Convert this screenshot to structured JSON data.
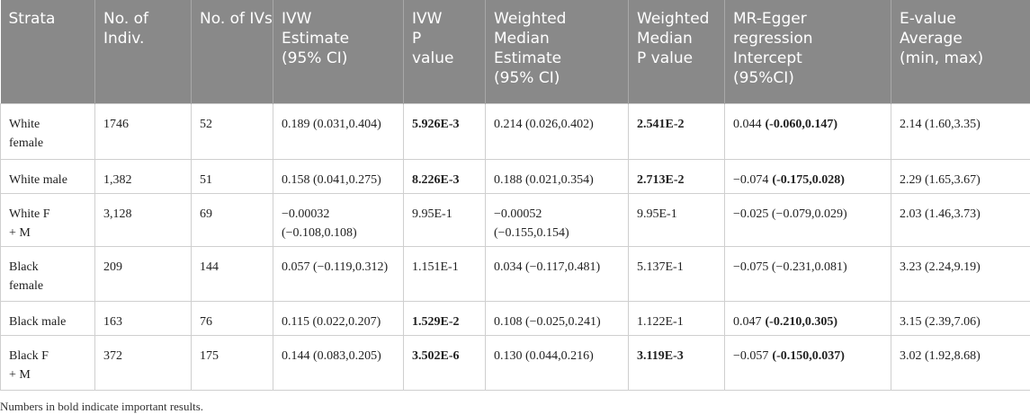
{
  "table": {
    "header": [
      [
        "Strata"
      ],
      [
        "No. of",
        "Indiv."
      ],
      [
        "No. of IVs"
      ],
      [
        "IVW",
        "Estimate",
        "(95% CI)"
      ],
      [
        "IVW",
        "P",
        "value"
      ],
      [
        "Weighted",
        "Median",
        "Estimate",
        "(95% CI)"
      ],
      [
        "Weighted",
        "Median",
        "P value"
      ],
      [
        "MR-Egger",
        "regression",
        "Intercept",
        "(95%CI)"
      ],
      [
        "E-value",
        "Average",
        "(min, max)"
      ]
    ],
    "rows": [
      [
        [
          "White",
          "female"
        ],
        [
          "1746"
        ],
        [
          "52"
        ],
        [
          "0.189 (0.031,0.404)"
        ],
        [
          {
            "bold": "5.926E-3"
          }
        ],
        [
          "0.214 (0.026,0.402)"
        ],
        [
          {
            "bold": "2.541E-2"
          }
        ],
        [
          {
            "plain": "0.044",
            "bold": "(-0.060,0.147)"
          }
        ],
        [
          "2.14 (1.60,3.35)"
        ]
      ],
      [
        [
          "White male"
        ],
        [
          "1,382"
        ],
        [
          "51"
        ],
        [
          "0.158 (0.041,0.275)"
        ],
        [
          {
            "bold": "8.226E-3"
          }
        ],
        [
          "0.188 (0.021,0.354)"
        ],
        [
          {
            "bold": "2.713E-2"
          }
        ],
        [
          {
            "plain": "−0.074",
            "bold": "(-0.175,0.028)"
          }
        ],
        [
          "2.29 (1.65,3.67)"
        ]
      ],
      [
        [
          "White F",
          "+ M"
        ],
        [
          "3,128"
        ],
        [
          "69"
        ],
        [
          "−0.00032",
          "(−0.108,0.108)"
        ],
        [
          "9.95E-1"
        ],
        [
          "−0.00052",
          "(−0.155,0.154)"
        ],
        [
          "9.95E-1"
        ],
        [
          "−0.025 (−0.079,0.029)"
        ],
        [
          "2.03 (1.46,3.73)"
        ]
      ],
      [
        [
          "Black",
          "female"
        ],
        [
          "209"
        ],
        [
          "144"
        ],
        [
          "0.057 (−0.119,0.312)"
        ],
        [
          "1.151E-1"
        ],
        [
          "0.034 (−0.117,0.481)"
        ],
        [
          "5.137E-1"
        ],
        [
          "−0.075 (−0.231,0.081)"
        ],
        [
          "3.23 (2.24,9.19)"
        ]
      ],
      [
        [
          "Black male"
        ],
        [
          "163"
        ],
        [
          "76"
        ],
        [
          "0.115 (0.022,0.207)"
        ],
        [
          {
            "bold": "1.529E-2"
          }
        ],
        [
          "0.108 (−0.025,0.241)"
        ],
        [
          "1.122E-1"
        ],
        [
          {
            "plain": "0.047",
            "bold": "(-0.210,0.305)"
          }
        ],
        [
          "3.15 (2.39,7.06)"
        ]
      ],
      [
        [
          "Black F",
          "+ M"
        ],
        [
          "372"
        ],
        [
          "175"
        ],
        [
          "0.144 (0.083,0.205)"
        ],
        [
          {
            "bold": "3.502E-6"
          }
        ],
        [
          "0.130 (0.044,0.216)"
        ],
        [
          {
            "bold": "3.119E-3"
          }
        ],
        [
          {
            "plain": "−0.057",
            "bold": "(-0.150,0.037)"
          }
        ],
        [
          "3.02 (1.92,8.68)"
        ]
      ]
    ],
    "footnote": "Numbers in bold indicate important results."
  }
}
